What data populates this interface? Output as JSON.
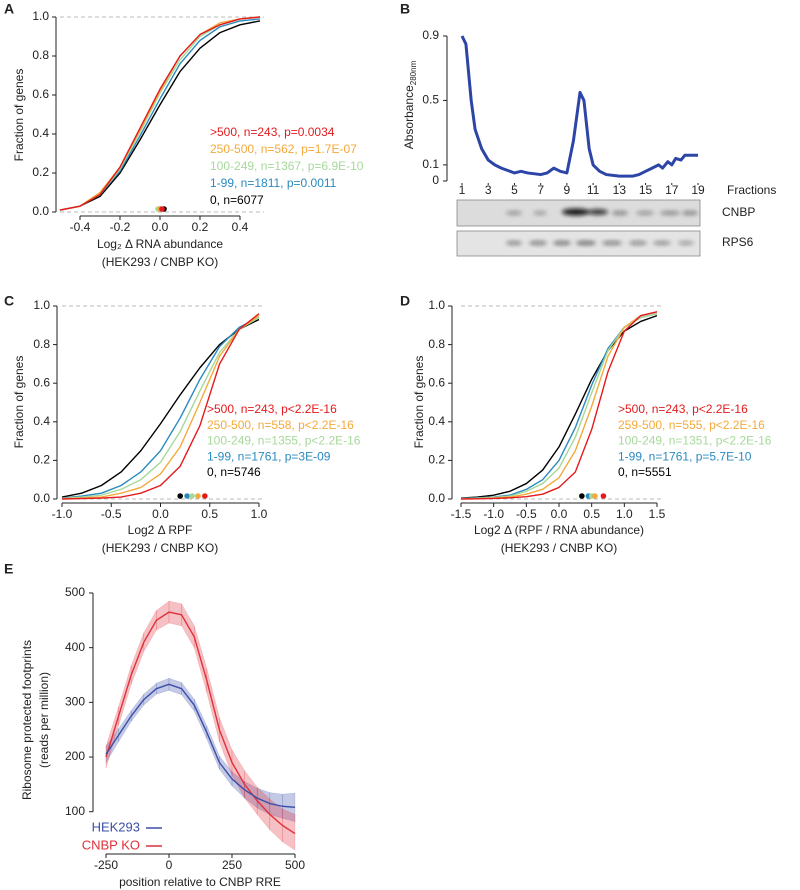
{
  "chart_data": [
    {
      "type": "line",
      "panel": "A",
      "ylabel": [
        "Fraction of genes"
      ],
      "xlabel": [
        "Log₂ Δ RNA abundance",
        "(HEK293 / CNBP KO)"
      ],
      "xlim": [
        -0.5,
        0.5
      ],
      "ylim": [
        0,
        1
      ],
      "xticks": [
        -0.4,
        -0.2,
        {
          "value": 0,
          "label": "0.0"
        },
        0.2,
        0.4
      ],
      "yticks": [
        {
          "value": 0,
          "label": "0.0"
        },
        0.2,
        0.4,
        0.6,
        0.8,
        {
          "value": 1,
          "label": "1.0"
        }
      ],
      "ref_lines": [
        0,
        1
      ],
      "x": [
        -0.5,
        -0.4,
        -0.3,
        -0.2,
        -0.1,
        0,
        0.1,
        0.2,
        0.3,
        0.4,
        0.5
      ],
      "series": [
        {
          "name": ">500, n=243, p=0.0034",
          "color": "#e41a1c",
          "median": 0.01,
          "values": [
            0.01,
            0.03,
            0.09,
            0.23,
            0.43,
            0.63,
            0.8,
            0.91,
            0.96,
            0.99,
            1.0
          ]
        },
        {
          "name": "250-500, n=562, p=1.7E-07",
          "color": "#f4a93b",
          "median": 0.0,
          "values": [
            0.01,
            0.03,
            0.1,
            0.23,
            0.42,
            0.62,
            0.8,
            0.91,
            0.97,
            0.99,
            1.0
          ]
        },
        {
          "name": "100-249, n=1367, p=6.9E-10",
          "color": "#a6d99a",
          "median": -0.01,
          "values": [
            0.01,
            0.03,
            0.09,
            0.22,
            0.41,
            0.61,
            0.78,
            0.9,
            0.96,
            0.99,
            1.0
          ]
        },
        {
          "name": "1-99, n=1811, p=0.0011",
          "color": "#2a8ac0",
          "median": 0.0,
          "values": [
            0.01,
            0.03,
            0.09,
            0.21,
            0.39,
            0.58,
            0.76,
            0.88,
            0.95,
            0.98,
            0.99
          ]
        },
        {
          "name": "0, n=6077",
          "color": "#000000",
          "median": 0.02,
          "values": [
            0.01,
            0.03,
            0.08,
            0.2,
            0.37,
            0.55,
            0.72,
            0.84,
            0.92,
            0.96,
            0.98
          ]
        }
      ]
    },
    {
      "type": "line",
      "panel": "B",
      "ylabel": [
        "Absorbance"
      ],
      "ylabel_subscript": "280nm",
      "xlabel": [
        "Fractions"
      ],
      "xlim": [
        1,
        19
      ],
      "ylim": [
        0,
        0.9
      ],
      "xticks": [
        1,
        3,
        5,
        7,
        9,
        11,
        13,
        15,
        17,
        19
      ],
      "yticks": [
        0,
        0.1,
        0.5,
        0.9
      ],
      "blots": [
        "CNBP",
        "RPS6"
      ],
      "x": [
        1,
        1.3,
        1.7,
        2,
        2.5,
        3,
        3.5,
        4,
        5,
        5.5,
        6,
        7,
        7.5,
        8,
        8.5,
        9,
        9.5,
        10,
        10.3,
        10.7,
        11,
        11.5,
        12,
        13,
        14,
        14.5,
        15,
        15.5,
        16,
        16.3,
        16.7,
        17,
        17.3,
        17.7,
        18,
        18.5,
        19
      ],
      "series": [
        {
          "name": null,
          "color": "#2e45a8",
          "values": [
            0.9,
            0.85,
            0.5,
            0.32,
            0.2,
            0.13,
            0.1,
            0.08,
            0.05,
            0.06,
            0.05,
            0.04,
            0.05,
            0.08,
            0.06,
            0.05,
            0.25,
            0.55,
            0.5,
            0.2,
            0.1,
            0.06,
            0.04,
            0.03,
            0.03,
            0.04,
            0.06,
            0.08,
            0.1,
            0.08,
            0.12,
            0.1,
            0.14,
            0.13,
            0.16,
            0.16,
            0.16
          ]
        }
      ]
    },
    {
      "type": "line",
      "panel": "C",
      "ylabel": [
        "Fraction of genes"
      ],
      "xlabel": [
        "Log2 Δ RPF",
        "(HEK293 / CNBP KO)"
      ],
      "xlim": [
        -1,
        1
      ],
      "ylim": [
        0,
        1
      ],
      "xticks": [
        {
          "value": -1,
          "label": "-1.0"
        },
        -0.5,
        {
          "value": 0,
          "label": "0.0"
        },
        0.5,
        {
          "value": 1,
          "label": "1.0"
        }
      ],
      "yticks": [
        {
          "value": 0,
          "label": "0.0"
        },
        0.2,
        0.4,
        0.6,
        0.8,
        {
          "value": 1,
          "label": "1.0"
        }
      ],
      "ref_lines": [
        0,
        1
      ],
      "x": [
        -1,
        -0.8,
        -0.6,
        -0.4,
        -0.2,
        0,
        0.2,
        0.4,
        0.6,
        0.8,
        1
      ],
      "series": [
        {
          "name": ">500, n=243, p<2.2E-16",
          "color": "#e41a1c",
          "median": 0.45,
          "values": [
            0,
            0.002,
            0.005,
            0.01,
            0.03,
            0.07,
            0.17,
            0.38,
            0.7,
            0.88,
            0.96
          ]
        },
        {
          "name": "250-500, n=558, p<2.2E-16",
          "color": "#f4a93b",
          "median": 0.38,
          "values": [
            0.002,
            0.005,
            0.01,
            0.03,
            0.06,
            0.13,
            0.27,
            0.5,
            0.74,
            0.88,
            0.95
          ]
        },
        {
          "name": "100-249, n=1355, p<2.2E-16",
          "color": "#a6d99a",
          "median": 0.32,
          "values": [
            0.003,
            0.01,
            0.02,
            0.05,
            0.1,
            0.19,
            0.35,
            0.56,
            0.76,
            0.88,
            0.94
          ]
        },
        {
          "name": "1-99, n=1761, p=3E-09",
          "color": "#2a8ac0",
          "median": 0.27,
          "values": [
            0.005,
            0.015,
            0.03,
            0.07,
            0.14,
            0.25,
            0.42,
            0.62,
            0.79,
            0.89,
            0.94
          ]
        },
        {
          "name": "0, n=5746",
          "color": "#000000",
          "median": 0.2,
          "values": [
            0.01,
            0.03,
            0.07,
            0.14,
            0.25,
            0.39,
            0.54,
            0.68,
            0.8,
            0.88,
            0.93
          ]
        }
      ]
    },
    {
      "type": "line",
      "panel": "D",
      "ylabel": [
        "Fraction of genes"
      ],
      "xlabel": [
        "Log2 Δ (RPF / RNA abundance)",
        "(HEK293 / CNBP KO)"
      ],
      "xlim": [
        -1.5,
        1.5
      ],
      "ylim": [
        0,
        1
      ],
      "xticks": [
        -1.5,
        {
          "value": -1,
          "label": "-1.0"
        },
        -0.5,
        {
          "value": 0,
          "label": "0.0"
        },
        0.5,
        {
          "value": 1,
          "label": "1.0"
        },
        1.5
      ],
      "yticks": [
        {
          "value": 0,
          "label": "0.0"
        },
        0.2,
        0.4,
        0.6,
        0.8,
        {
          "value": 1,
          "label": "1.0"
        }
      ],
      "ref_lines": [
        0,
        1
      ],
      "x": [
        -1.5,
        -1.25,
        -1,
        -0.75,
        -0.5,
        -0.25,
        0,
        0.25,
        0.5,
        0.75,
        1,
        1.25,
        1.5
      ],
      "series": [
        {
          "name": ">500, n=243, p<2.2E-16",
          "color": "#e41a1c",
          "median": 0.68,
          "values": [
            0,
            0.001,
            0.003,
            0.006,
            0.012,
            0.025,
            0.06,
            0.14,
            0.36,
            0.66,
            0.87,
            0.95,
            0.97
          ]
        },
        {
          "name": "259-500, n=555, p<2.2E-16",
          "color": "#f4a93b",
          "median": 0.55,
          "values": [
            0.001,
            0.002,
            0.005,
            0.01,
            0.025,
            0.05,
            0.11,
            0.25,
            0.48,
            0.74,
            0.89,
            0.95,
            0.97
          ]
        },
        {
          "name": "100-249, n=1351, p<2.2E-16",
          "color": "#a6d99a",
          "median": 0.5,
          "values": [
            0.002,
            0.004,
            0.008,
            0.015,
            0.04,
            0.08,
            0.16,
            0.32,
            0.55,
            0.77,
            0.89,
            0.94,
            0.96
          ]
        },
        {
          "name": "1-99, n=1761, p=5.7E-10",
          "color": "#2a8ac0",
          "median": 0.45,
          "values": [
            0.003,
            0.006,
            0.01,
            0.02,
            0.05,
            0.1,
            0.2,
            0.37,
            0.59,
            0.78,
            0.89,
            0.94,
            0.96
          ]
        },
        {
          "name": "0, n=5551",
          "color": "#000000",
          "median": 0.35,
          "values": [
            0.005,
            0.01,
            0.02,
            0.04,
            0.08,
            0.15,
            0.27,
            0.44,
            0.62,
            0.77,
            0.87,
            0.92,
            0.95
          ]
        }
      ]
    },
    {
      "type": "line",
      "panel": "E",
      "ylabel": [
        "Ribosome protected footprints",
        "(reads per million)"
      ],
      "xlabel": [
        "position relative to CNBP RRE"
      ],
      "xlim": [
        -250,
        500
      ],
      "ylim": [
        30,
        510
      ],
      "xticks": [
        -250,
        0,
        250,
        500
      ],
      "yticks": [
        100,
        200,
        300,
        400,
        500
      ],
      "x": [
        -250,
        -200,
        -150,
        -100,
        -50,
        0,
        50,
        100,
        150,
        200,
        250,
        300,
        350,
        400,
        450,
        500
      ],
      "series": [
        {
          "name": "HEK293",
          "color": "#3b4fa8",
          "values": [
            205,
            240,
            275,
            305,
            325,
            333,
            325,
            295,
            245,
            190,
            160,
            140,
            125,
            115,
            110,
            108
          ],
          "lower": [
            190,
            228,
            265,
            295,
            315,
            322,
            314,
            284,
            233,
            178,
            147,
            125,
            107,
            95,
            88,
            82
          ],
          "upper": [
            220,
            252,
            285,
            315,
            335,
            344,
            336,
            306,
            257,
            202,
            173,
            155,
            143,
            135,
            132,
            134
          ]
        },
        {
          "name": "CNBP KO",
          "color": "#e0313a",
          "values": [
            200,
            275,
            350,
            410,
            450,
            465,
            460,
            420,
            340,
            250,
            190,
            150,
            120,
            95,
            75,
            60
          ],
          "lower": [
            180,
            258,
            333,
            393,
            432,
            445,
            440,
            400,
            318,
            228,
            167,
            125,
            95,
            67,
            45,
            30
          ],
          "upper": [
            220,
            292,
            367,
            427,
            468,
            485,
            480,
            440,
            362,
            272,
            213,
            175,
            145,
            123,
            105,
            95
          ]
        }
      ]
    }
  ]
}
